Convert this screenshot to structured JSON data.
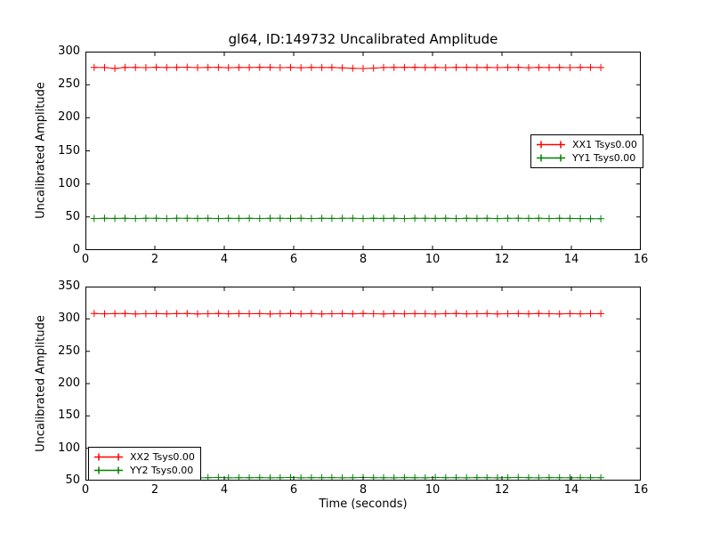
{
  "figure": {
    "title": "gl64, ID:149732 Uncalibrated Amplitude",
    "background": "#ffffff",
    "axis_color": "#000000"
  },
  "chart_data": [
    {
      "type": "line",
      "title": "gl64, ID:149732 Uncalibrated Amplitude",
      "xlabel": "",
      "ylabel": "Uncalibrated Amplitude",
      "xlim": [
        0,
        16
      ],
      "ylim": [
        0,
        300
      ],
      "xticks": [
        0,
        2,
        4,
        6,
        8,
        10,
        12,
        14,
        16
      ],
      "yticks": [
        0,
        50,
        100,
        150,
        200,
        250,
        300
      ],
      "grid": false,
      "legend_position": "center-right",
      "x": [
        0.25,
        0.55,
        0.85,
        1.14,
        1.44,
        1.74,
        2.04,
        2.34,
        2.63,
        2.93,
        3.23,
        3.53,
        3.83,
        4.12,
        4.42,
        4.72,
        5.02,
        5.32,
        5.61,
        5.91,
        6.21,
        6.51,
        6.81,
        7.1,
        7.4,
        7.7,
        8.0,
        8.3,
        8.59,
        8.89,
        9.19,
        9.49,
        9.79,
        10.08,
        10.38,
        10.68,
        10.98,
        11.28,
        11.57,
        11.87,
        12.17,
        12.47,
        12.77,
        13.06,
        13.36,
        13.66,
        13.96,
        14.26,
        14.55,
        14.85
      ],
      "series": [
        {
          "name": "XX1 Tsys0.00",
          "color": "#ff0000",
          "marker": "+",
          "values": [
            276.2,
            275.9,
            274.6,
            276.1,
            276.0,
            275.8,
            276.3,
            275.9,
            276.1,
            276.4,
            275.8,
            276.0,
            276.2,
            275.7,
            276.1,
            275.9,
            276.3,
            276.0,
            275.8,
            276.2,
            275.7,
            276.1,
            275.9,
            276.0,
            275.4,
            274.8,
            274.5,
            275.1,
            275.9,
            276.2,
            276.0,
            276.3,
            275.9,
            276.1,
            275.8,
            276.2,
            276.0,
            275.9,
            276.1,
            275.8,
            276.2,
            276.0,
            275.7,
            276.1,
            275.9,
            276.2,
            275.8,
            276.0,
            276.1,
            275.9
          ]
        },
        {
          "name": "YY1 Tsys0.00",
          "color": "#008000",
          "marker": "+",
          "values": [
            47.8,
            48.1,
            47.9,
            48.2,
            47.7,
            48.0,
            48.1,
            47.8,
            48.0,
            48.2,
            47.9,
            48.1,
            47.8,
            48.0,
            47.9,
            48.1,
            47.7,
            48.0,
            48.2,
            47.9,
            48.0,
            47.8,
            48.1,
            47.9,
            48.0,
            48.2,
            47.8,
            48.0,
            47.9,
            48.1,
            47.8,
            48.0,
            48.2,
            47.9,
            48.1,
            47.8,
            48.0,
            47.9,
            48.1,
            47.7,
            48.0,
            48.2,
            47.9,
            48.0,
            47.8,
            48.1,
            47.9,
            47.6,
            47.4,
            47.5
          ]
        }
      ]
    },
    {
      "type": "line",
      "title": "",
      "xlabel": "Time (seconds)",
      "ylabel": "Uncalibrated Amplitude",
      "xlim": [
        0,
        16
      ],
      "ylim": [
        50,
        350
      ],
      "xticks": [
        0,
        2,
        4,
        6,
        8,
        10,
        12,
        14,
        16
      ],
      "yticks": [
        50,
        100,
        150,
        200,
        250,
        300,
        350
      ],
      "grid": false,
      "legend_position": "lower-left",
      "x": [
        0.25,
        0.55,
        0.85,
        1.14,
        1.44,
        1.74,
        2.04,
        2.34,
        2.63,
        2.93,
        3.23,
        3.53,
        3.83,
        4.12,
        4.42,
        4.72,
        5.02,
        5.32,
        5.61,
        5.91,
        6.21,
        6.51,
        6.81,
        7.1,
        7.4,
        7.7,
        8.0,
        8.3,
        8.59,
        8.89,
        9.19,
        9.49,
        9.79,
        10.08,
        10.38,
        10.68,
        10.98,
        11.28,
        11.57,
        11.87,
        12.17,
        12.47,
        12.77,
        13.06,
        13.36,
        13.66,
        13.96,
        14.26,
        14.55,
        14.85
      ],
      "series": [
        {
          "name": "XX2 Tsys0.00",
          "color": "#ff0000",
          "marker": "+",
          "values": [
            308.3,
            307.9,
            308.1,
            308.4,
            307.8,
            308.0,
            308.2,
            307.9,
            308.1,
            308.3,
            307.8,
            308.0,
            308.5,
            307.9,
            308.1,
            308.0,
            308.2,
            307.8,
            308.0,
            308.3,
            307.9,
            308.1,
            307.8,
            308.0,
            308.2,
            307.9,
            308.4,
            308.0,
            307.8,
            308.1,
            307.9,
            308.2,
            308.0,
            307.8,
            308.1,
            308.3,
            307.9,
            308.0,
            308.2,
            307.8,
            308.0,
            308.1,
            307.9,
            308.3,
            308.0,
            307.8,
            308.1,
            307.9,
            308.0,
            308.2
          ]
        },
        {
          "name": "YY2 Tsys0.00",
          "color": "#008000",
          "marker": "+",
          "values": [
            54.6,
            54.3,
            54.8,
            54.2,
            54.5,
            54.7,
            54.3,
            54.6,
            54.4,
            54.7,
            54.2,
            54.5,
            54.8,
            54.3,
            54.6,
            54.4,
            54.7,
            54.3,
            54.5,
            54.8,
            54.2,
            54.6,
            54.4,
            54.7,
            54.3,
            54.5,
            54.8,
            54.4,
            54.6,
            54.2,
            54.7,
            54.5,
            54.3,
            54.8,
            54.4,
            54.6,
            54.2,
            54.7,
            54.5,
            54.3,
            54.6,
            54.8,
            54.4,
            54.2,
            54.7,
            54.5,
            54.3,
            54.6,
            54.4,
            54.5
          ]
        }
      ]
    }
  ]
}
